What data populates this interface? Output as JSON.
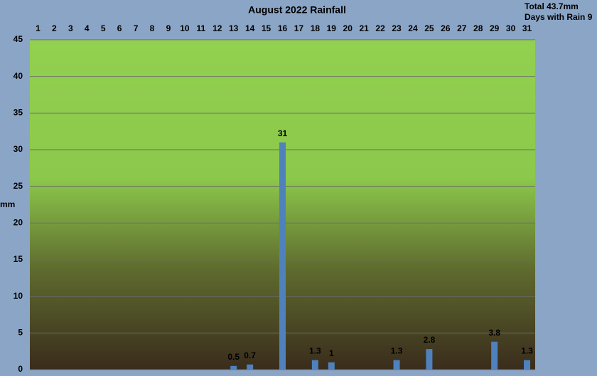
{
  "chart_data": {
    "type": "bar",
    "title": "August 2022 Rainfall",
    "annotations": [
      "Total 43.7mm",
      "Days with Rain 9"
    ],
    "y_label": "mm",
    "categories": [
      "1",
      "2",
      "3",
      "4",
      "5",
      "6",
      "7",
      "8",
      "9",
      "10",
      "11",
      "12",
      "13",
      "14",
      "15",
      "16",
      "17",
      "18",
      "19",
      "20",
      "21",
      "22",
      "23",
      "24",
      "25",
      "26",
      "27",
      "28",
      "29",
      "30",
      "31"
    ],
    "values": [
      0,
      0,
      0,
      0,
      0,
      0,
      0,
      0,
      0,
      0,
      0,
      0,
      0.5,
      0.7,
      0,
      31,
      0,
      1.3,
      1,
      0,
      0,
      0,
      1.3,
      0,
      2.8,
      0,
      0,
      0,
      3.8,
      0,
      1.3
    ],
    "color": "#4f81bd",
    "ylim": [
      0,
      45
    ],
    "yticks": [
      0,
      5,
      10,
      15,
      20,
      25,
      30,
      35,
      40,
      45
    ],
    "grid": true
  }
}
